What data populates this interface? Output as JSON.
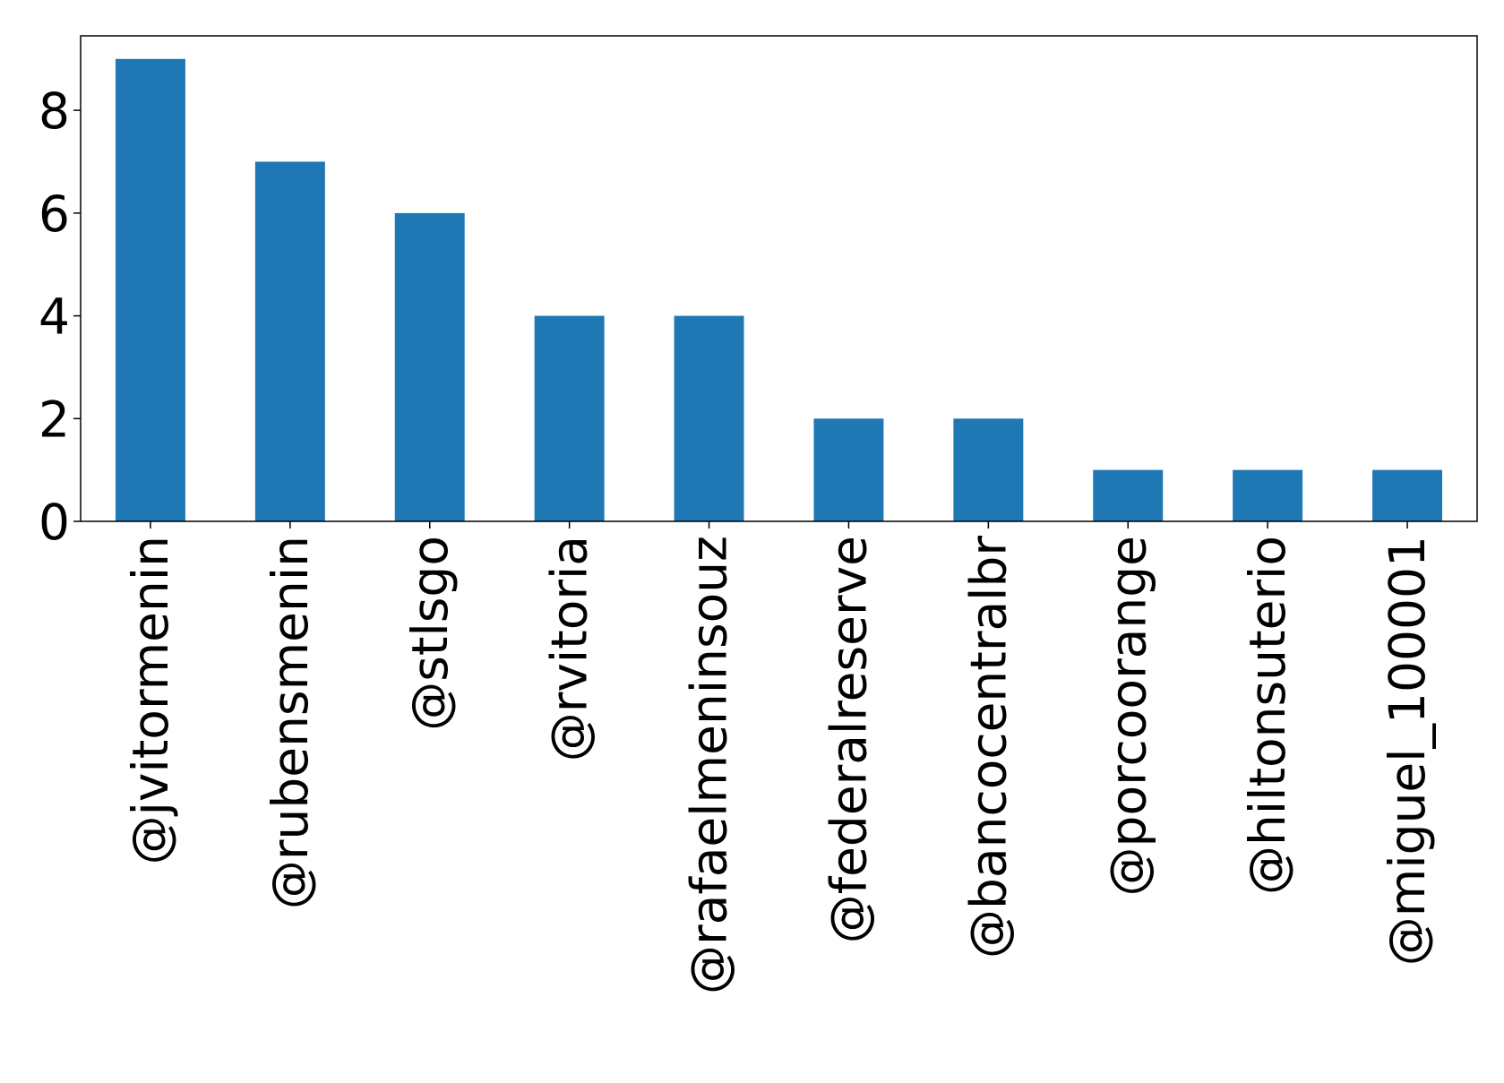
{
  "chart_data": {
    "type": "bar",
    "title": "",
    "xlabel": "",
    "ylabel": "",
    "categories": [
      "@jvitormenin",
      "@rubensmenin",
      "@stlsgo",
      "@rvitoria",
      "@rafaelmeninsouz",
      "@federalreserve",
      "@bancocentralbr",
      "@porcoorange",
      "@hiltonsuterio",
      "@miguel_100001"
    ],
    "values": [
      9,
      7,
      6,
      4,
      4,
      2,
      2,
      1,
      1,
      1
    ],
    "ylim": [
      0,
      9.45
    ],
    "yticks": [
      0,
      2,
      4,
      6,
      8
    ],
    "grid": false,
    "bar_color": "#1f77b4"
  }
}
